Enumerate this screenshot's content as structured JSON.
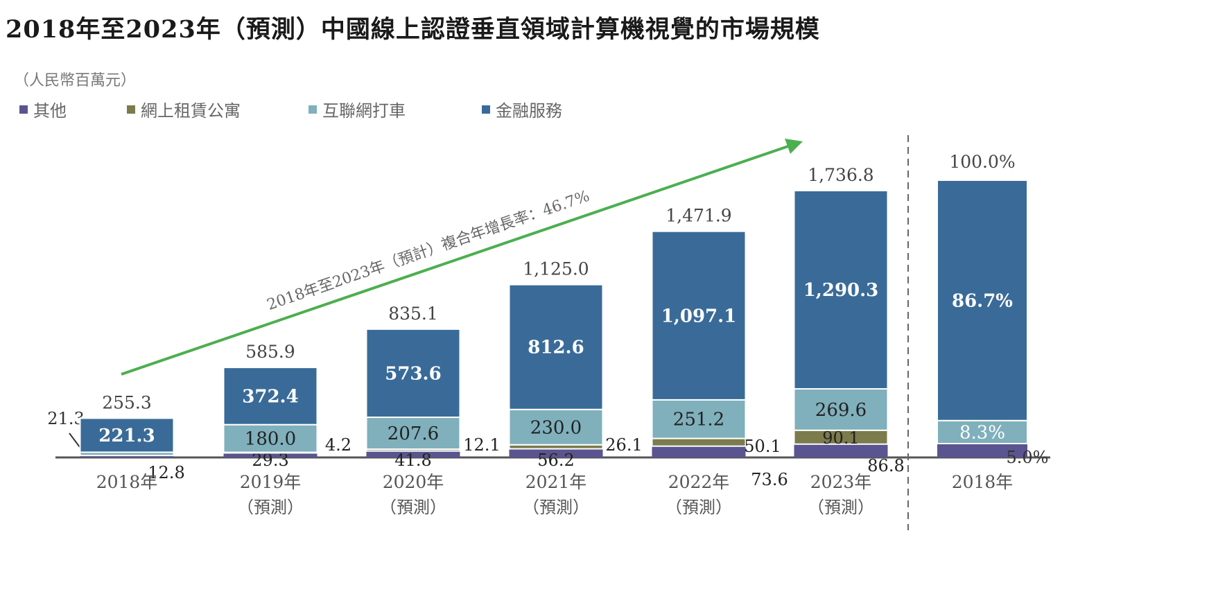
{
  "chart_data": {
    "type": "bar",
    "stacked": true,
    "title": "2018年至2023年（預測）中國線上認證垂直領域計算機視覺的市場規模",
    "unit": "（人民幣百萬元）",
    "categories": [
      {
        "year": "2018年",
        "note": ""
      },
      {
        "year": "2019年",
        "note": "（預測）"
      },
      {
        "year": "2020年",
        "note": "（預測）"
      },
      {
        "year": "2021年",
        "note": "（預測）"
      },
      {
        "year": "2022年",
        "note": "（預測）"
      },
      {
        "year": "2023年",
        "note": "（預測）"
      }
    ],
    "series": [
      {
        "name": "其他",
        "color": "#5a5490",
        "values": [
          12.8,
          29.3,
          41.8,
          56.2,
          73.6,
          86.8
        ],
        "labels": [
          "12.8",
          "29.3",
          "41.8",
          "56.2",
          "73.6",
          "86.8"
        ]
      },
      {
        "name": "網上租賃公寓",
        "color": "#7b7b4c",
        "values": [
          0,
          4.2,
          12.1,
          26.1,
          50.1,
          90.1
        ],
        "labels": [
          "",
          "4.2",
          "12.1",
          "26.1",
          "50.1",
          "90.1"
        ]
      },
      {
        "name": "互聯網打車",
        "color": "#7fb0bc",
        "values": [
          21.3,
          180.0,
          207.6,
          230.0,
          251.2,
          269.6
        ],
        "labels": [
          "21.3",
          "180.0",
          "207.6",
          "230.0",
          "251.2",
          "269.6"
        ]
      },
      {
        "name": "金融服務",
        "color": "#3a6b98",
        "values": [
          221.3,
          372.4,
          573.6,
          812.6,
          1097.1,
          1290.3
        ],
        "labels": [
          "221.3",
          "372.4",
          "573.6",
          "812.6",
          "1,097.1",
          "1,290.3"
        ]
      }
    ],
    "totals": [
      "255.3",
      "585.9",
      "835.1",
      "1,125.0",
      "1,471.9",
      "1,736.8"
    ],
    "share_bar": {
      "category": "2018年",
      "total_label": "100.0%",
      "values": [
        5.0,
        0,
        8.3,
        86.7
      ],
      "labels": [
        "5.0%",
        "",
        "8.3%",
        "86.7%"
      ]
    },
    "cagr_annotation": "2018年至2023年（預計）複合年增長率：46.7%",
    "arrow_color": "#4caf50",
    "ylim": [
      0,
      1736.8
    ],
    "grid": false,
    "legend_position": "top-left"
  }
}
